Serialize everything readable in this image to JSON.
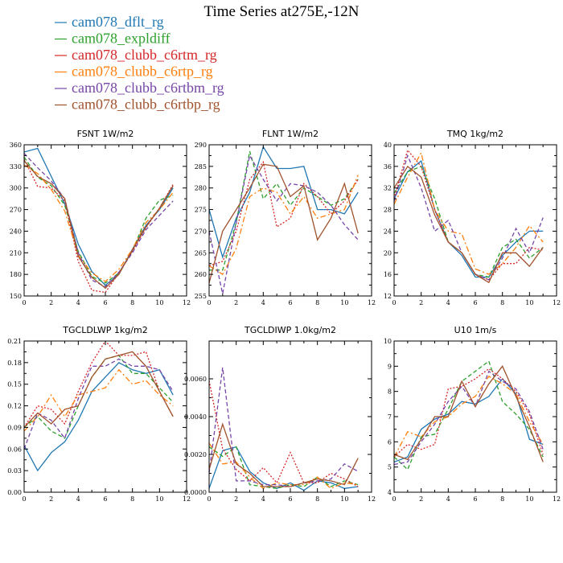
{
  "title": "Time Series at275E,-12N",
  "colors": {
    "dflt": "#1f77b4",
    "expldiff": "#2ca02c",
    "c6rtm": "#d62728",
    "c6rtp": "#ff7f0e",
    "c6rtbm": "#7646a8",
    "c6rtbp": "#a0522d"
  },
  "legend": [
    {
      "label": "cam078_dflt_rg",
      "color": "#1f77b4"
    },
    {
      "label": "cam078_expldiff",
      "color": "#2ca02c"
    },
    {
      "label": "cam078_clubb_c6rtm_rg",
      "color": "#d62728"
    },
    {
      "label": "cam078_clubb_c6rtp_rg",
      "color": "#ff7f0e"
    },
    {
      "label": "cam078_clubb_c6rtbm_rg",
      "color": "#7646a8"
    },
    {
      "label": "cam078_clubb_c6rtbp_rg",
      "color": "#a0522d"
    }
  ],
  "chart_data": [
    {
      "type": "line",
      "title": "FSNT  1W/m2",
      "x": [
        0,
        1,
        2,
        3,
        4,
        5,
        6,
        7,
        8,
        9,
        10,
        11
      ],
      "xlim": [
        0,
        12
      ],
      "xticks": [
        0,
        2,
        4,
        6,
        8,
        10,
        12
      ],
      "xtick_labels": [
        "0",
        "2",
        "4",
        "6",
        "8",
        "10",
        "12"
      ],
      "ylim": [
        150,
        360
      ],
      "yticks": [
        150,
        180,
        210,
        240,
        270,
        300,
        330,
        360
      ],
      "ytick_labels": [
        "150",
        "180",
        "210",
        "240",
        "270",
        "300",
        "330",
        "360"
      ],
      "series": [
        {
          "name": "cam078_dflt_rg",
          "dash": "solid",
          "values": [
            350,
            355,
            316,
            278,
            222,
            184,
            165,
            180,
            215,
            248,
            270,
            300
          ]
        },
        {
          "name": "cam078_expldiff",
          "dash": "dashed",
          "values": [
            343,
            315,
            303,
            276,
            212,
            177,
            168,
            182,
            213,
            258,
            283,
            290
          ]
        },
        {
          "name": "cam078_clubb_c6rtm_rg",
          "dash": "dotted",
          "values": [
            340,
            302,
            300,
            282,
            198,
            158,
            155,
            182,
            212,
            245,
            272,
            305
          ]
        },
        {
          "name": "cam078_clubb_c6rtp_rg",
          "dash": "dashdot",
          "values": [
            332,
            320,
            298,
            268,
            207,
            182,
            170,
            187,
            215,
            252,
            270,
            294
          ]
        },
        {
          "name": "cam078_clubb_c6rtbm_rg",
          "dash": "dashed",
          "values": [
            348,
            328,
            310,
            285,
            210,
            172,
            163,
            183,
            210,
            242,
            262,
            282
          ]
        },
        {
          "name": "cam078_clubb_c6rtbp_rg",
          "dash": "solid",
          "values": [
            338,
            316,
            306,
            285,
            205,
            176,
            161,
            180,
            214,
            246,
            272,
            303
          ]
        }
      ]
    },
    {
      "type": "line",
      "title": "FLNT  1W/m2",
      "x": [
        0,
        1,
        2,
        3,
        4,
        5,
        6,
        7,
        8,
        9,
        10,
        11
      ],
      "xlim": [
        0,
        12
      ],
      "xticks": [
        0,
        2,
        4,
        6,
        8,
        10,
        12
      ],
      "xtick_labels": [
        "0",
        "2",
        "4",
        "6",
        "8",
        "10",
        "12"
      ],
      "ylim": [
        255,
        290
      ],
      "yticks": [
        255,
        260,
        265,
        270,
        275,
        280,
        285,
        290
      ],
      "ytick_labels": [
        "255",
        "260",
        "265",
        "270",
        "275",
        "280",
        "285",
        "290"
      ],
      "series": [
        {
          "name": "cam078_dflt_rg",
          "dash": "solid",
          "values": [
            275,
            264,
            273,
            279,
            289.5,
            284.5,
            284.5,
            285,
            275,
            275,
            274,
            279
          ]
        },
        {
          "name": "cam078_expldiff",
          "dash": "dashed",
          "values": [
            261,
            261,
            272,
            288.5,
            277.5,
            281,
            276,
            280,
            278,
            276,
            277.5,
            282
          ]
        },
        {
          "name": "cam078_clubb_c6rtm_rg",
          "dash": "dotted",
          "values": [
            262,
            263,
            270,
            282,
            286,
            271,
            273,
            281,
            278,
            274,
            277,
            282
          ]
        },
        {
          "name": "cam078_clubb_c6rtp_rg",
          "dash": "dashdot",
          "values": [
            262,
            260,
            266,
            278,
            280,
            279,
            274,
            278,
            273,
            274,
            275,
            283
          ]
        },
        {
          "name": "cam078_clubb_c6rtbm_rg",
          "dash": "dashed",
          "values": [
            270,
            255.5,
            272,
            287.5,
            282,
            277,
            281,
            280.5,
            279,
            276,
            271.5,
            268
          ]
        },
        {
          "name": "cam078_clubb_c6rtbp_rg",
          "dash": "solid",
          "values": [
            258,
            270,
            275,
            280,
            285.5,
            285,
            278,
            280.5,
            268,
            273,
            281,
            269.5
          ]
        }
      ]
    },
    {
      "type": "line",
      "title": "TMQ  1kg/m2",
      "x": [
        0,
        1,
        2,
        3,
        4,
        5,
        6,
        7,
        8,
        9,
        10,
        11
      ],
      "xlim": [
        0,
        12
      ],
      "xticks": [
        0,
        2,
        4,
        6,
        8,
        10,
        12
      ],
      "xtick_labels": [
        "0",
        "2",
        "4",
        "6",
        "8",
        "10",
        "12"
      ],
      "ylim": [
        12,
        40
      ],
      "yticks": [
        12,
        16,
        20,
        24,
        28,
        32,
        36,
        40
      ],
      "ytick_labels": [
        "12",
        "16",
        "20",
        "24",
        "28",
        "32",
        "36",
        "40"
      ],
      "series": [
        {
          "name": "cam078_dflt_rg",
          "dash": "solid",
          "values": [
            30,
            35,
            37,
            28,
            22,
            19.5,
            15.5,
            15.5,
            19.5,
            22,
            24,
            24
          ]
        },
        {
          "name": "cam078_expldiff",
          "dash": "dashed",
          "values": [
            31,
            35,
            36,
            30,
            22,
            20,
            16,
            15.5,
            21,
            22.5,
            19,
            21
          ]
        },
        {
          "name": "cam078_clubb_c6rtm_rg",
          "dash": "dotted",
          "values": [
            30,
            39,
            36,
            28,
            22,
            20,
            16,
            15,
            18,
            18,
            21,
            20.5
          ]
        },
        {
          "name": "cam078_clubb_c6rtp_rg",
          "dash": "dashdot",
          "values": [
            29,
            34,
            38.5,
            28,
            24,
            23.5,
            17,
            16,
            18,
            21,
            25,
            22
          ]
        },
        {
          "name": "cam078_clubb_c6rtbm_rg",
          "dash": "dashed",
          "values": [
            29.5,
            38,
            32,
            24,
            26,
            20,
            16,
            15,
            19,
            24.5,
            20,
            26.5
          ]
        },
        {
          "name": "cam078_clubb_c6rtbp_rg",
          "dash": "solid",
          "values": [
            32,
            36,
            34,
            27,
            22,
            20,
            16,
            14.5,
            20,
            20,
            17.5,
            21
          ]
        }
      ]
    },
    {
      "type": "line",
      "title": "TGCLDLWP  1kg/m2",
      "x": [
        0,
        1,
        2,
        3,
        4,
        5,
        6,
        7,
        8,
        9,
        10,
        11
      ],
      "xlim": [
        0,
        12
      ],
      "xticks": [
        0,
        2,
        4,
        6,
        8,
        10,
        12
      ],
      "xtick_labels": [
        "0",
        "2",
        "4",
        "6",
        "8",
        "10",
        "12"
      ],
      "ylim": [
        0,
        0.21
      ],
      "yticks": [
        0,
        0.03,
        0.06,
        0.09,
        0.12,
        0.15,
        0.18,
        0.21
      ],
      "ytick_labels": [
        "0.00",
        "0.03",
        "0.06",
        "0.09",
        "0.12",
        "0.15",
        "0.18",
        "0.21"
      ],
      "series": [
        {
          "name": "cam078_dflt_rg",
          "dash": "solid",
          "values": [
            0.065,
            0.03,
            0.055,
            0.07,
            0.1,
            0.14,
            0.16,
            0.18,
            0.17,
            0.165,
            0.17,
            0.135
          ]
        },
        {
          "name": "cam078_expldiff",
          "dash": "dashed",
          "values": [
            0.09,
            0.105,
            0.085,
            0.075,
            0.12,
            0.16,
            0.185,
            0.19,
            0.165,
            0.165,
            0.145,
            0.125
          ]
        },
        {
          "name": "cam078_clubb_c6rtm_rg",
          "dash": "dotted",
          "values": [
            0.09,
            0.12,
            0.115,
            0.095,
            0.14,
            0.18,
            0.21,
            0.19,
            0.19,
            0.195,
            0.14,
            0.105
          ]
        },
        {
          "name": "cam078_clubb_c6rtp_rg",
          "dash": "dashdot",
          "values": [
            0.085,
            0.105,
            0.135,
            0.105,
            0.135,
            0.14,
            0.145,
            0.17,
            0.15,
            0.155,
            0.135,
            0.12
          ]
        },
        {
          "name": "cam078_clubb_c6rtbm_rg",
          "dash": "dashed",
          "values": [
            0.06,
            0.11,
            0.1,
            0.075,
            0.13,
            0.175,
            0.175,
            0.185,
            0.175,
            0.175,
            0.17,
            0.14
          ]
        },
        {
          "name": "cam078_clubb_c6rtbp_rg",
          "dash": "solid",
          "values": [
            0.09,
            0.11,
            0.095,
            0.115,
            0.12,
            0.16,
            0.185,
            0.19,
            0.195,
            0.175,
            0.14,
            0.105
          ]
        }
      ]
    },
    {
      "type": "line",
      "title": "TGCLDIWP  1.0kg/m2",
      "x": [
        0,
        1,
        2,
        3,
        4,
        5,
        6,
        7,
        8,
        9,
        10,
        11
      ],
      "xlim": [
        0,
        12
      ],
      "xticks": [
        0,
        2,
        4,
        6,
        8,
        10,
        12
      ],
      "xtick_labels": [
        "0",
        "2",
        "4",
        "6",
        "8",
        "10",
        "12"
      ],
      "ylim": [
        0,
        0.008
      ],
      "yticks": [
        0,
        0.002,
        0.004,
        0.006
      ],
      "ytick_labels": [
        "0.0000",
        "0.0020",
        "0.0040",
        "0.0060"
      ],
      "series": [
        {
          "name": "cam078_dflt_rg",
          "dash": "solid",
          "values": [
            0.0002,
            0.0022,
            0.0024,
            0.0011,
            0.0005,
            0.0002,
            0.0005,
            0.0001,
            0.0006,
            0.0005,
            0.0002,
            0.0003
          ]
        },
        {
          "name": "cam078_expldiff",
          "dash": "dashed",
          "values": [
            0.0024,
            0.0019,
            0.0024,
            0.0004,
            0.0003,
            0.0002,
            0.0004,
            0.0003,
            0.0008,
            0.0003,
            0.0006,
            0.0004
          ]
        },
        {
          "name": "cam078_clubb_c6rtm_rg",
          "dash": "dotted",
          "values": [
            0.0059,
            0.0023,
            0.0012,
            0.0006,
            0.0013,
            0.0005,
            0.0021,
            0.0005,
            0.0005,
            0.001,
            0.0007,
            0.0003
          ]
        },
        {
          "name": "cam078_clubb_c6rtp_rg",
          "dash": "dashdot",
          "values": [
            0.0026,
            0.0015,
            0.0016,
            0.0008,
            0.0002,
            0.0005,
            0.0004,
            0.0004,
            0.0008,
            0.0002,
            0.0005,
            0.0004
          ]
        },
        {
          "name": "cam078_clubb_c6rtbm_rg",
          "dash": "dashed",
          "values": [
            0.001,
            0.0066,
            0.0006,
            0.0006,
            0.0004,
            0.0004,
            0.0003,
            0.0005,
            0.0006,
            0.0007,
            0.0015,
            0.0011
          ]
        },
        {
          "name": "cam078_clubb_c6rtbp_rg",
          "dash": "solid",
          "values": [
            0.0012,
            0.0036,
            0.0015,
            0.001,
            0.0003,
            0.0003,
            0.0003,
            0.0005,
            0.0007,
            0.0006,
            0.0004,
            0.0018
          ]
        }
      ]
    },
    {
      "type": "line",
      "title": "U10  1m/s",
      "x": [
        0,
        1,
        2,
        3,
        4,
        5,
        6,
        7,
        8,
        9,
        10,
        11
      ],
      "xlim": [
        0,
        12
      ],
      "xticks": [
        0,
        2,
        4,
        6,
        8,
        10,
        12
      ],
      "xtick_labels": [
        "0",
        "2",
        "4",
        "6",
        "8",
        "10",
        "12"
      ],
      "ylim": [
        4,
        10
      ],
      "yticks": [
        4,
        5,
        6,
        7,
        8,
        9,
        10
      ],
      "ytick_labels": [
        "4",
        "5",
        "6",
        "7",
        "8",
        "9",
        "10"
      ],
      "series": [
        {
          "name": "cam078_dflt_rg",
          "dash": "solid",
          "values": [
            5.2,
            5.4,
            6.5,
            6.9,
            7.1,
            7.6,
            7.5,
            7.8,
            8.5,
            7.9,
            6.1,
            5.9
          ]
        },
        {
          "name": "cam078_expldiff",
          "dash": "dashed",
          "values": [
            5.4,
            4.9,
            6.2,
            6.3,
            7.3,
            8.4,
            8.8,
            9.2,
            7.6,
            7.1,
            6.5,
            5.4
          ]
        },
        {
          "name": "cam078_clubb_c6rtm_rg",
          "dash": "dotted",
          "values": [
            5.4,
            5.9,
            5.7,
            5.9,
            8.1,
            8.2,
            8.5,
            8.9,
            8.5,
            8,
            7.1,
            5.5
          ]
        },
        {
          "name": "cam078_clubb_c6rtp_rg",
          "dash": "dashdot",
          "values": [
            5.4,
            6.4,
            6.2,
            6.8,
            7,
            7.5,
            7.8,
            8.6,
            8.3,
            7.9,
            6.8,
            5.9
          ]
        },
        {
          "name": "cam078_clubb_c6rtbm_rg",
          "dash": "dashed",
          "values": [
            5.1,
            5.2,
            6,
            6.7,
            7.6,
            8.2,
            7.4,
            8.8,
            8.4,
            8.1,
            7.2,
            5.7
          ]
        },
        {
          "name": "cam078_clubb_c6rtbp_rg",
          "dash": "solid",
          "values": [
            5.5,
            5.3,
            6.1,
            7,
            7,
            8.4,
            7.4,
            8.3,
            9,
            7.8,
            6.6,
            5.2
          ]
        }
      ]
    }
  ]
}
